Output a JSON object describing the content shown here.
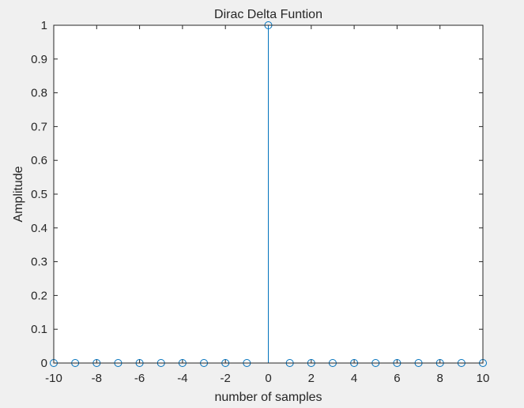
{
  "chart_data": {
    "type": "stem",
    "title": "Dirac Delta Funtion",
    "xlabel": "number of samples",
    "ylabel": "Amplitude",
    "xlim": [
      -10,
      10
    ],
    "ylim": [
      0,
      1
    ],
    "x_ticks": [
      "-10",
      "-8",
      "-6",
      "-4",
      "-2",
      "0",
      "2",
      "4",
      "6",
      "8",
      "10"
    ],
    "x_tick_values": [
      -10,
      -8,
      -6,
      -4,
      -2,
      0,
      2,
      4,
      6,
      8,
      10
    ],
    "y_ticks": [
      "0",
      "0.1",
      "0.2",
      "0.3",
      "0.4",
      "0.5",
      "0.6",
      "0.7",
      "0.8",
      "0.9",
      "1"
    ],
    "y_tick_values": [
      0,
      0.1,
      0.2,
      0.3,
      0.4,
      0.5,
      0.6,
      0.7,
      0.8,
      0.9,
      1
    ],
    "x": [
      -10,
      -9,
      -8,
      -7,
      -6,
      -5,
      -4,
      -3,
      -2,
      -1,
      0,
      1,
      2,
      3,
      4,
      5,
      6,
      7,
      8,
      9,
      10
    ],
    "y": [
      0,
      0,
      0,
      0,
      0,
      0,
      0,
      0,
      0,
      0,
      1,
      0,
      0,
      0,
      0,
      0,
      0,
      0,
      0,
      0,
      0
    ],
    "grid": false,
    "series_color": "#0072bd",
    "axis_color": "#262626",
    "background_color": "#f0f0f0",
    "plot_background_color": "#ffffff"
  }
}
